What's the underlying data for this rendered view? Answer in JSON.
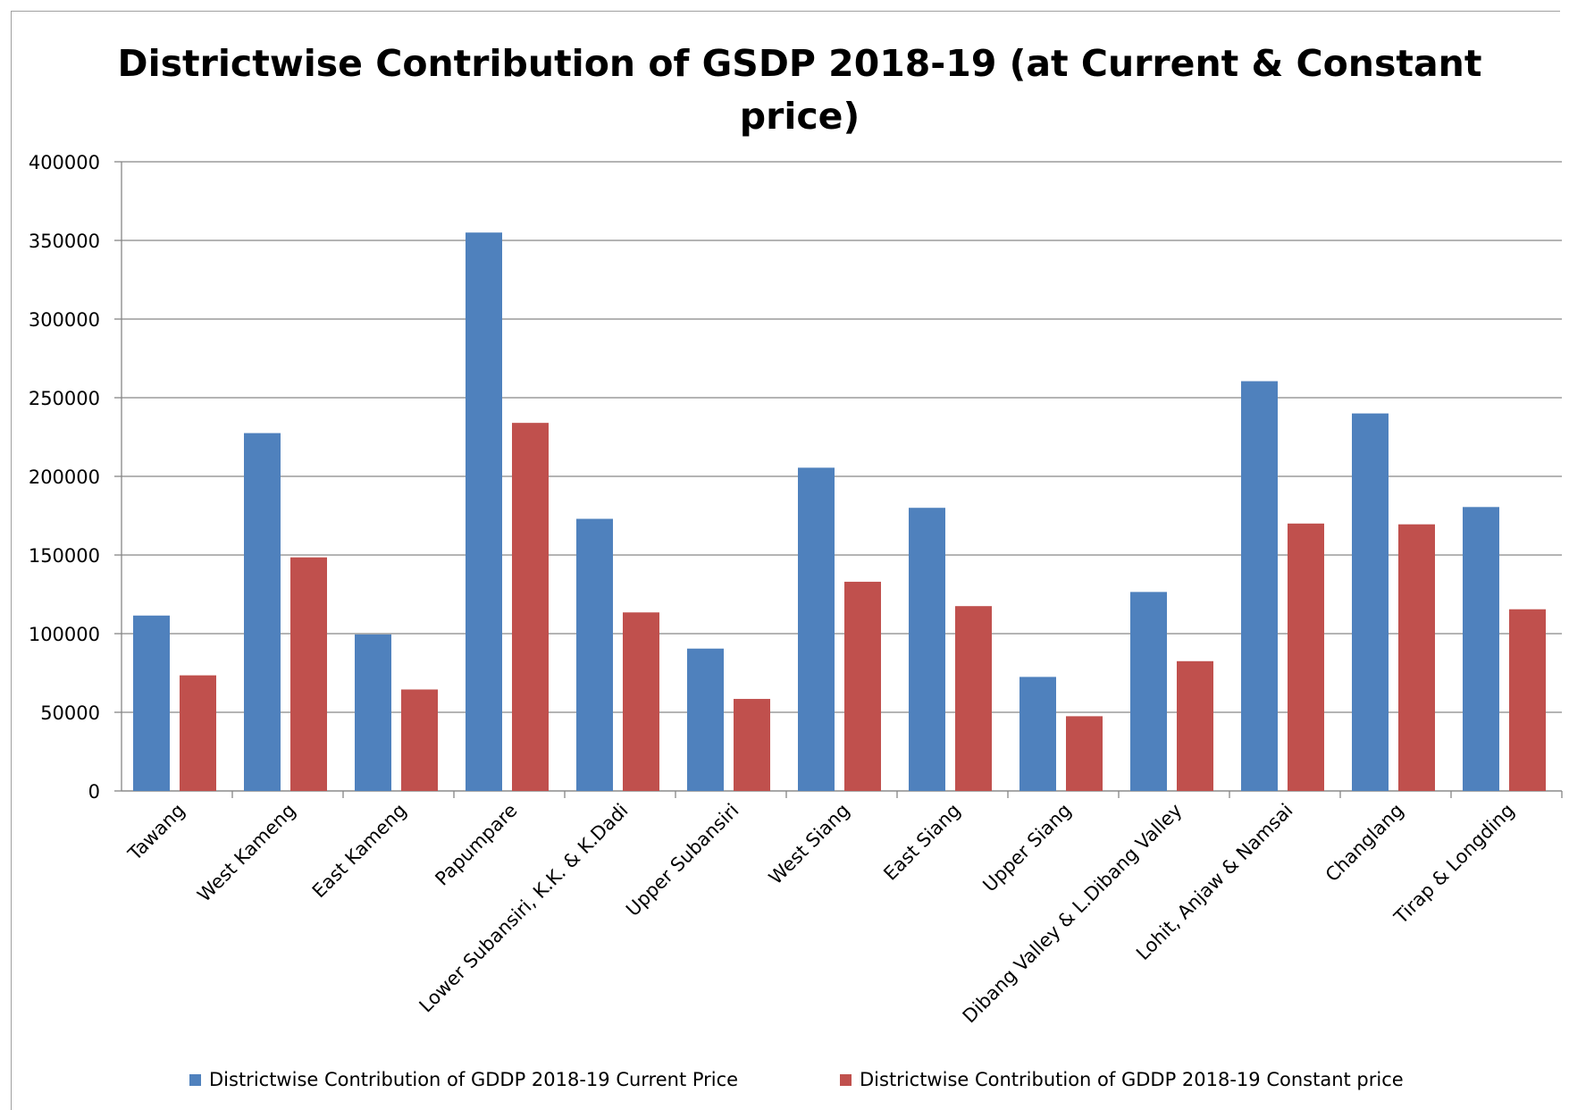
{
  "colors": {
    "current": "#4f81bd",
    "constant": "#c0504d",
    "grid": "#868686",
    "axis": "#868686"
  },
  "chart_data": {
    "type": "bar",
    "title": "Districtwise Contribution of GSDP 2018-19 (at Current & Constant price)",
    "title_lines": [
      "Districtwise Contribution of GSDP 2018-19 (at Current & Constant",
      "price)"
    ],
    "xlabel": "",
    "ylabel": "",
    "ylim": [
      0,
      400000
    ],
    "yticks": [
      0,
      50000,
      100000,
      150000,
      200000,
      250000,
      300000,
      350000,
      400000
    ],
    "ytick_labels": [
      "0",
      "50000",
      "100000",
      "150000",
      "200000",
      "250000",
      "300000",
      "350000",
      "400000"
    ],
    "grid": true,
    "legend_position": "bottom",
    "categories": [
      "Tawang",
      "West Kameng",
      "East Kameng",
      "Papumpare",
      "Lower Subansiri, K.K. & K.Dadi",
      "Upper Subansiri",
      "West Siang",
      "East Siang",
      "Upper Siang",
      "Dibang Valley & L.Dibang Valley",
      "Lohit, Anjaw & Namsai",
      "Changlang",
      "Tirap & Longding"
    ],
    "series": [
      {
        "name": "Districtwise Contribution of GDDP 2018-19 Current Price",
        "values": [
          111500,
          227500,
          99500,
          355000,
          173000,
          90500,
          205500,
          180000,
          72500,
          126500,
          260500,
          240000,
          180500
        ]
      },
      {
        "name": "Districtwise Contribution of GDDP 2018-19 Constant price",
        "values": [
          73500,
          148500,
          64500,
          234000,
          113500,
          58500,
          133000,
          117500,
          47500,
          82500,
          170000,
          169500,
          115500
        ]
      }
    ]
  }
}
